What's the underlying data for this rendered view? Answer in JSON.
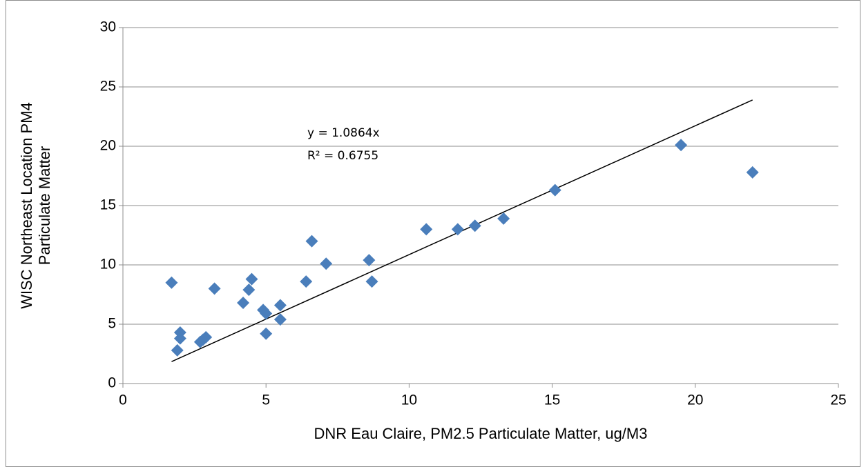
{
  "chart_data": {
    "type": "scatter",
    "xlabel": "DNR Eau Claire, PM2.5 Particulate Matter, ug/M3",
    "ylabel": [
      "WISC Northeast Location PM4",
      "Particulate Matter"
    ],
    "color": "#4a7ebb",
    "x": [
      1.7,
      1.9,
      2.0,
      2.0,
      2.7,
      2.8,
      2.9,
      3.2,
      4.2,
      4.4,
      4.5,
      4.9,
      5.0,
      5.0,
      5.5,
      5.5,
      6.4,
      6.6,
      7.1,
      8.6,
      8.7,
      10.6,
      11.7,
      12.3,
      13.3,
      15.1,
      19.5,
      22.0
    ],
    "values": [
      8.5,
      2.8,
      4.3,
      3.8,
      3.5,
      3.7,
      3.9,
      8.0,
      6.8,
      7.9,
      8.8,
      6.2,
      5.9,
      4.2,
      6.6,
      5.4,
      8.6,
      12.0,
      10.1,
      10.4,
      8.6,
      13.0,
      13.0,
      13.3,
      13.9,
      16.3,
      20.1,
      17.8
    ],
    "xlim": [
      0,
      25
    ],
    "xticks": [
      0,
      5,
      10,
      15,
      20,
      25
    ],
    "ylim": [
      0,
      30
    ],
    "yticks": [
      0,
      5,
      10,
      15,
      20,
      25,
      30
    ],
    "grid": true,
    "trendline": {
      "slope": 1.0864,
      "equation": "y = 1.0864x",
      "r2": "R² = 0.6755"
    }
  }
}
